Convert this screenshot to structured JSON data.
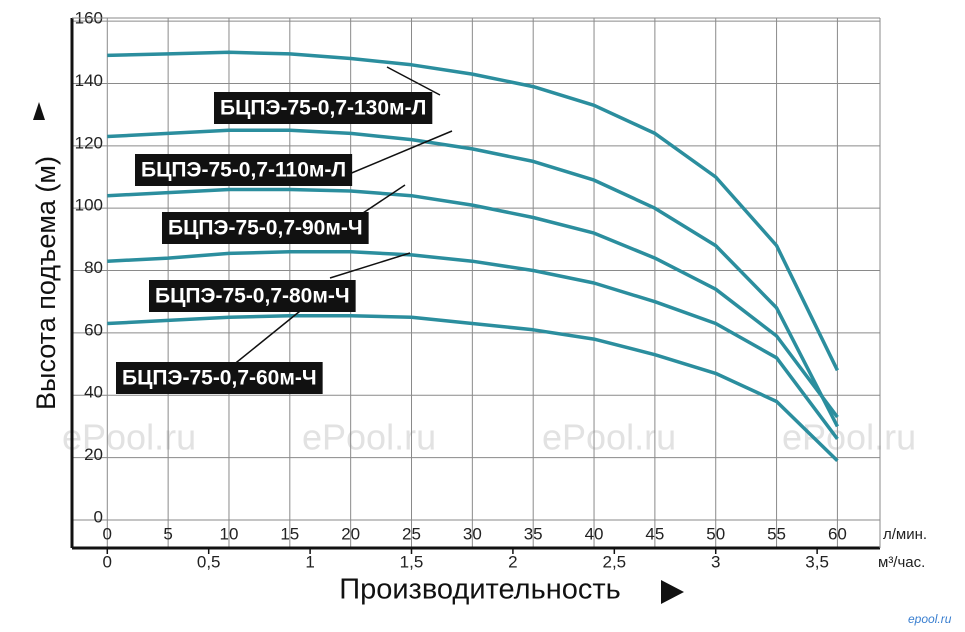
{
  "chart_data": {
    "type": "line",
    "y_label": "Высота подъема (м)",
    "x_title": "Производительность",
    "x_unit": "л/мин.",
    "x2_unit": "м³/час.",
    "x": [
      0,
      5,
      10,
      15,
      20,
      25,
      30,
      35,
      40,
      45,
      50,
      55,
      60
    ],
    "xlim": [
      -2.9,
      63.5
    ],
    "xticks": [
      0,
      5,
      10,
      15,
      20,
      25,
      30,
      35,
      40,
      45,
      50,
      55,
      60
    ],
    "x2lim": [
      -0.174,
      3.81
    ],
    "x2ticks": [
      0,
      {
        "value": 0.5,
        "label": "0,5"
      },
      1,
      {
        "value": 1.5,
        "label": "1,5"
      },
      2,
      {
        "value": 2.5,
        "label": "2,5"
      },
      3,
      {
        "value": 3.5,
        "label": "3,5"
      }
    ],
    "ylim": [
      -9,
      161
    ],
    "yticks": [
      0,
      20,
      40,
      60,
      80,
      100,
      120,
      140,
      160
    ],
    "grid": true,
    "series": [
      {
        "name": "БЦПЭ-75-0,7-130м-Л",
        "color": "#2b8e9e",
        "values": [
          149,
          149.5,
          150,
          149.5,
          148,
          146,
          143,
          139,
          133,
          124,
          110,
          88,
          48
        ]
      },
      {
        "name": "БЦПЭ-75-0,7-110м-Л",
        "color": "#2b8e9e",
        "values": [
          123,
          124,
          125,
          125,
          124,
          122,
          119,
          115,
          109,
          100,
          88,
          68,
          30
        ]
      },
      {
        "name": "БЦПЭ-75-0,7-90м-Ч",
        "color": "#2b8e9e",
        "values": [
          104,
          105,
          106,
          106,
          105.5,
          104,
          101,
          97,
          92,
          84,
          74,
          59,
          33
        ]
      },
      {
        "name": "БЦПЭ-75-0,7-80м-Ч",
        "color": "#2b8e9e",
        "values": [
          83,
          84,
          85.5,
          86,
          86,
          85,
          83,
          80,
          76,
          70,
          63,
          52,
          26
        ]
      },
      {
        "name": "БЦПЭ-75-0,7-60м-Ч",
        "color": "#2b8e9e",
        "values": [
          63,
          64,
          65,
          65.5,
          65.5,
          65,
          63,
          61,
          58,
          53,
          47,
          38,
          19
        ]
      }
    ],
    "watermarks": [
      "ePool.ru",
      "ePool.ru",
      "ePool.ru",
      "ePool.ru"
    ],
    "logo": "epool.ru"
  }
}
